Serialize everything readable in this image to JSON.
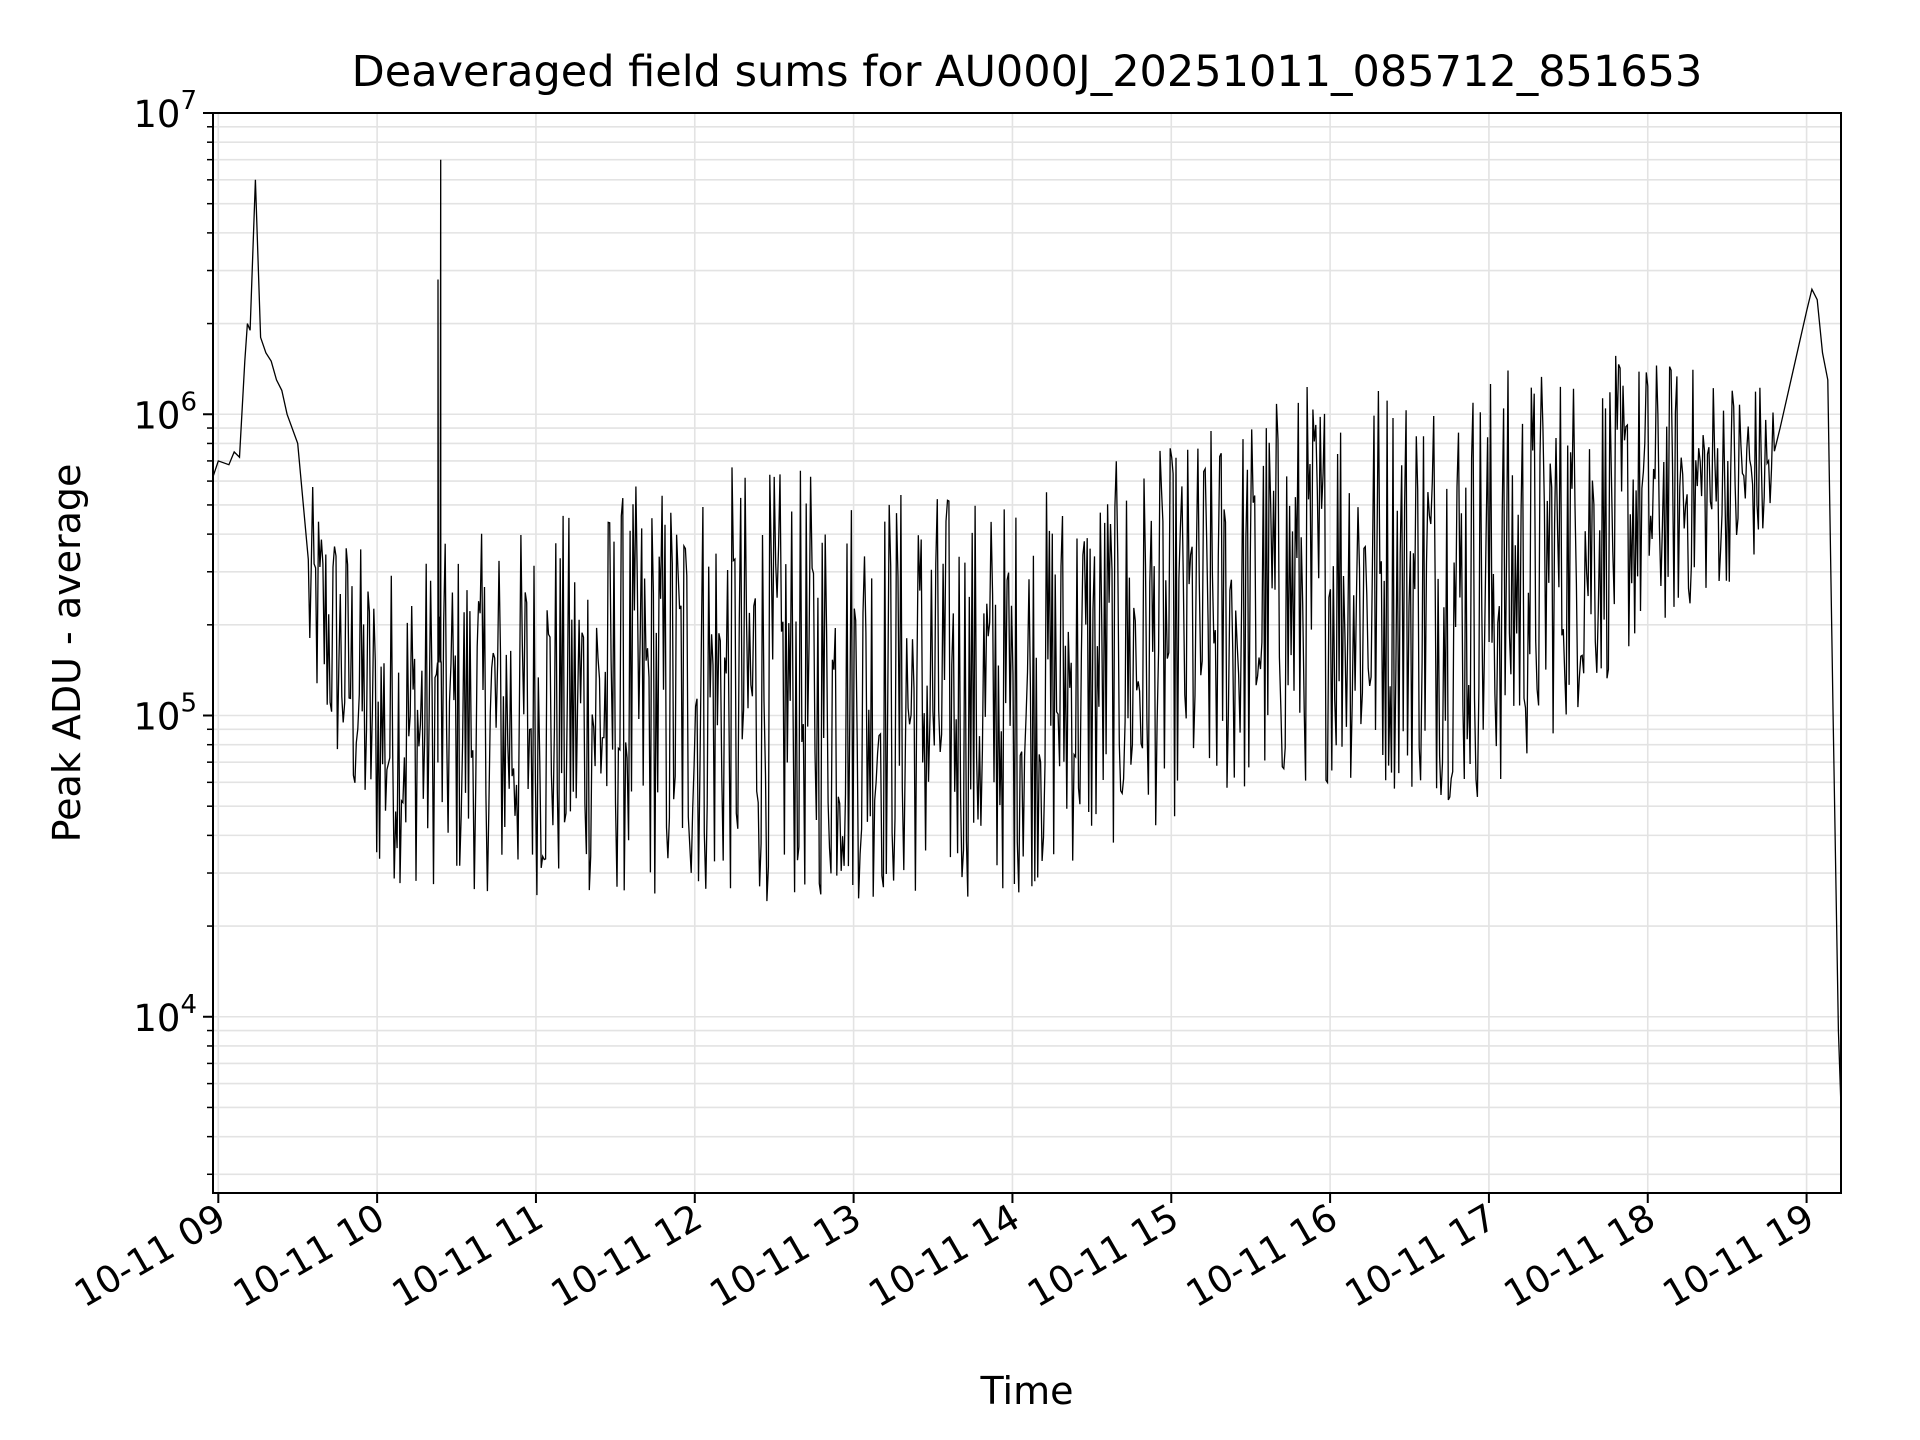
{
  "chart_data": {
    "type": "line",
    "title": "Deaveraged field sums for AU000J_20251011_085712_851653",
    "xlabel": "Time",
    "ylabel": "Peak ADU - average",
    "yscale": "log",
    "ylim": [
      2600,
      10000000
    ],
    "xlim": [
      "2025-10-11 08:58",
      "2025-10-11 19:13"
    ],
    "x_ticks": [
      {
        "t": "2025-10-11 09:00",
        "label": "10-11 09"
      },
      {
        "t": "2025-10-11 10:00",
        "label": "10-11 10"
      },
      {
        "t": "2025-10-11 11:00",
        "label": "10-11 11"
      },
      {
        "t": "2025-10-11 12:00",
        "label": "10-11 12"
      },
      {
        "t": "2025-10-11 13:00",
        "label": "10-11 13"
      },
      {
        "t": "2025-10-11 14:00",
        "label": "10-11 14"
      },
      {
        "t": "2025-10-11 15:00",
        "label": "10-11 15"
      },
      {
        "t": "2025-10-11 16:00",
        "label": "10-11 16"
      },
      {
        "t": "2025-10-11 17:00",
        "label": "10-11 17"
      },
      {
        "t": "2025-10-11 18:00",
        "label": "10-11 18"
      },
      {
        "t": "2025-10-11 19:00",
        "label": "10-11 19"
      }
    ],
    "y_ticks": [
      {
        "value": 10000,
        "base": "10",
        "exp": "4"
      },
      {
        "value": 100000,
        "base": "10",
        "exp": "5"
      },
      {
        "value": 1000000,
        "base": "10",
        "exp": "6"
      },
      {
        "value": 10000000,
        "base": "10",
        "exp": "7"
      }
    ],
    "grid": true,
    "line_color": "#000000",
    "grid_color": "#e3e3e3",
    "series": [
      {
        "x": [
          "2025-10-11 08:58",
          "2025-10-11 09:00",
          "2025-10-11 09:04",
          "2025-10-11 09:06",
          "2025-10-11 09:08",
          "2025-10-11 09:10",
          "2025-10-11 09:11",
          "2025-10-11 09:12",
          "2025-10-11 09:14",
          "2025-10-11 09:16",
          "2025-10-11 09:18",
          "2025-10-11 09:20",
          "2025-10-11 09:22",
          "2025-10-11 09:24",
          "2025-10-11 09:26",
          "2025-10-11 09:30",
          "2025-10-11 09:34",
          "2025-10-11 09:36",
          "2025-10-11 09:38",
          "2025-10-11 09:40",
          "2025-10-11 09:42",
          "2025-10-11 09:44",
          "2025-10-11 09:46",
          "2025-10-11 09:50",
          "2025-10-11 09:54",
          "2025-10-11 09:58",
          "2025-10-11 10:00",
          "2025-10-11 10:02",
          "2025-10-11 10:06",
          "2025-10-11 10:12",
          "2025-10-11 10:18",
          "2025-10-11 10:20",
          "2025-10-11 10:23",
          "2025-10-11 10:24",
          "2025-10-11 10:25",
          "2025-10-11 10:27",
          "2025-10-11 10:30",
          "2025-10-11 10:40",
          "2025-10-11 10:50",
          "2025-10-11 11:00",
          "2025-10-11 11:15",
          "2025-10-11 11:30",
          "2025-10-11 11:45",
          "2025-10-11 11:52",
          "2025-10-11 12:00",
          "2025-10-11 12:15",
          "2025-10-11 12:30",
          "2025-10-11 12:45",
          "2025-10-11 13:00",
          "2025-10-11 13:15",
          "2025-10-11 13:30",
          "2025-10-11 13:45",
          "2025-10-11 14:00",
          "2025-10-11 14:15",
          "2025-10-11 14:30",
          "2025-10-11 14:45",
          "2025-10-11 15:00",
          "2025-10-11 15:15",
          "2025-10-11 15:30",
          "2025-10-11 15:45",
          "2025-10-11 16:00",
          "2025-10-11 16:15",
          "2025-10-11 16:30",
          "2025-10-11 16:45",
          "2025-10-11 17:00",
          "2025-10-11 17:15",
          "2025-10-11 17:30",
          "2025-10-11 17:45",
          "2025-10-11 18:00",
          "2025-10-11 18:15",
          "2025-10-11 18:30",
          "2025-10-11 18:40",
          "2025-10-11 18:50",
          "2025-10-11 19:00",
          "2025-10-11 19:02",
          "2025-10-11 19:04",
          "2025-10-11 19:06",
          "2025-10-11 19:08",
          "2025-10-11 19:10",
          "2025-10-11 19:12",
          "2025-10-11 19:13"
        ],
        "y": [
          620000,
          700000,
          680000,
          750000,
          720000,
          1500000,
          2000000,
          1900000,
          6000000,
          1800000,
          1600000,
          1500000,
          1300000,
          1200000,
          1000000,
          800000,
          600000,
          400000,
          300000,
          200000,
          150000,
          120000,
          100000,
          90000,
          80000,
          70000,
          75000,
          80000,
          90000,
          85000,
          80000,
          200000,
          2800000,
          7000000,
          300000,
          100000,
          90000,
          80000,
          75000,
          70000,
          65000,
          60000,
          55000,
          60000,
          55000,
          50000,
          60000,
          80000,
          90000,
          90000,
          95000,
          100000,
          110000,
          120000,
          140000,
          160000,
          170000,
          180000,
          190000,
          220000,
          200000,
          150000,
          120000,
          140000,
          250000,
          350000,
          420000,
          550000,
          600000,
          650000,
          700000,
          700000,
          900000,
          2200000,
          2600000,
          2400000,
          1600000,
          1300000,
          100000,
          9000,
          5000
        ]
      }
    ],
    "noise_envelope": {
      "x": [
        "2025-10-11 09:34",
        "2025-10-11 10:00",
        "2025-10-11 11:00",
        "2025-10-11 12:00",
        "2025-10-11 13:00",
        "2025-10-11 14:00",
        "2025-10-11 15:00",
        "2025-10-11 16:00",
        "2025-10-11 17:00",
        "2025-10-11 18:00",
        "2025-10-11 18:48"
      ],
      "low": [
        120000,
        28000,
        25000,
        24000,
        24000,
        25000,
        45000,
        60000,
        50000,
        180000,
        350000
      ],
      "high": [
        600000,
        330000,
        450000,
        700000,
        650000,
        550000,
        800000,
        1500000,
        1500000,
        1600000,
        1300000
      ]
    }
  }
}
